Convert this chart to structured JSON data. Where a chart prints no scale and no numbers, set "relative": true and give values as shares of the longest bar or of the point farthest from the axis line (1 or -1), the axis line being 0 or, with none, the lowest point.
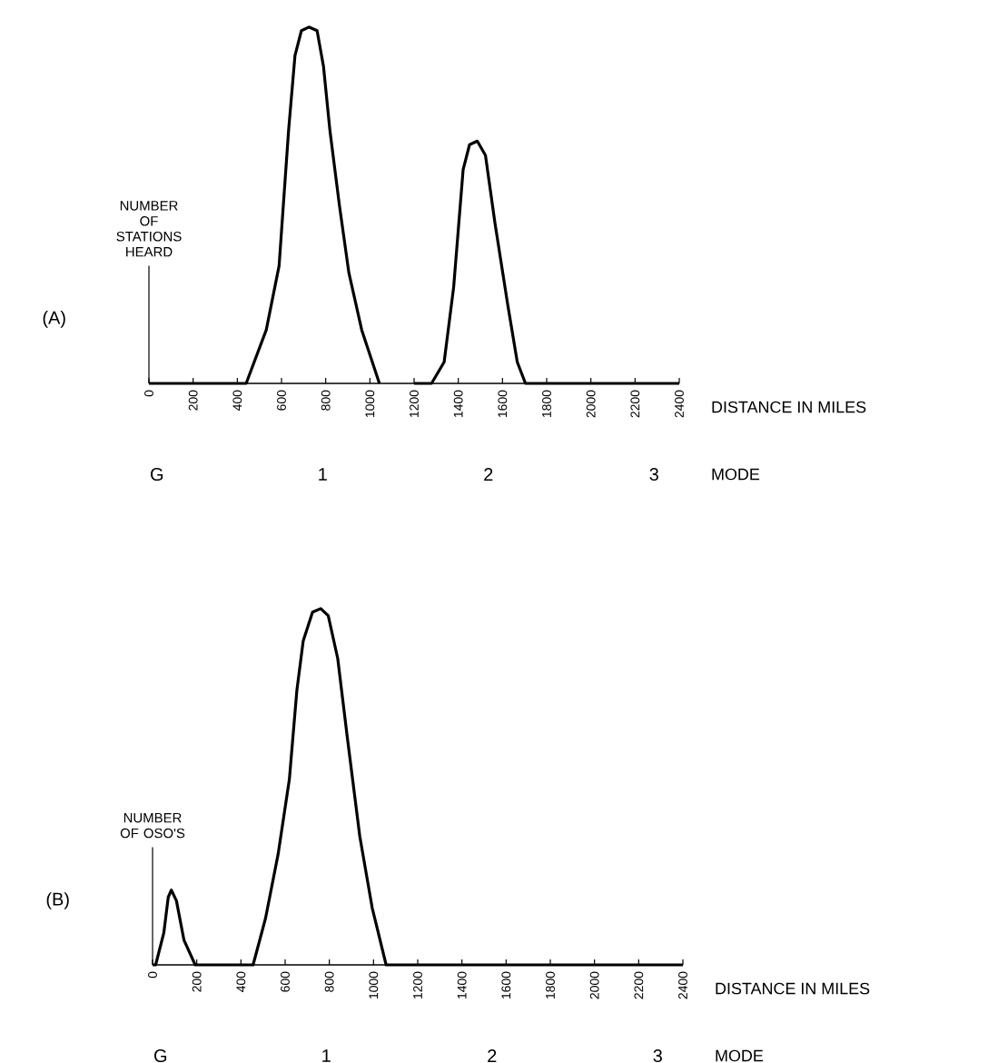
{
  "chart_data": [
    {
      "type": "line",
      "title": "(A)",
      "ylabel": "NUMBER OF STATIONS HEARD",
      "xlabel": "DISTANCE IN MILES",
      "relative": true,
      "x": [
        0,
        440,
        531,
        589,
        632,
        661,
        690,
        724,
        761,
        790,
        819,
        862,
        905,
        963,
        1043,
        1120,
        1200,
        1279,
        1336,
        1379,
        1422,
        1451,
        1486,
        1523,
        1566,
        1624,
        1667,
        1704,
        2400
      ],
      "series": [
        {
          "color": "#000000",
          "values": [
            0,
            0,
            0.15,
            0.33,
            0.71,
            0.92,
            0.99,
            1,
            0.99,
            0.89,
            0.71,
            0.5,
            0.31,
            0.15,
            0,
            null,
            0,
            0,
            0.06,
            0.27,
            0.6,
            0.67,
            0.68,
            0.64,
            0.45,
            0.22,
            0.06,
            0,
            0
          ]
        }
      ],
      "xlim": [
        0,
        2400
      ],
      "xticks": [
        0,
        200,
        400,
        600,
        800,
        1000,
        1200,
        1400,
        1600,
        1800,
        2000,
        2200,
        2400
      ],
      "annotations": [
        "G",
        "1",
        "2",
        "3",
        "MODE"
      ]
    },
    {
      "type": "line",
      "title": "(B)",
      "ylabel": "NUMBER OF OSO'S",
      "xlabel": "DISTANCE IN MILES",
      "relative": true,
      "x": [
        0,
        14,
        51,
        71,
        85,
        108,
        142,
        193,
        455,
        511,
        568,
        619,
        653,
        682,
        724,
        761,
        795,
        838,
        881,
        938,
        994,
        1057,
        2400
      ],
      "series": [
        {
          "color": "#000000",
          "values": [
            0,
            0,
            0.09,
            0.19,
            0.21,
            0.18,
            0.07,
            0,
            0,
            0.13,
            0.31,
            0.52,
            0.77,
            0.91,
            0.99,
            1,
            0.98,
            0.86,
            0.64,
            0.36,
            0.16,
            0,
            0
          ]
        }
      ],
      "xlim": [
        0,
        2400
      ],
      "xticks": [
        0,
        200,
        400,
        600,
        800,
        1000,
        1200,
        1400,
        1600,
        1800,
        2000,
        2200,
        2400
      ],
      "annotations": [
        "G",
        "1",
        "2",
        "3",
        "MODE"
      ]
    }
  ]
}
